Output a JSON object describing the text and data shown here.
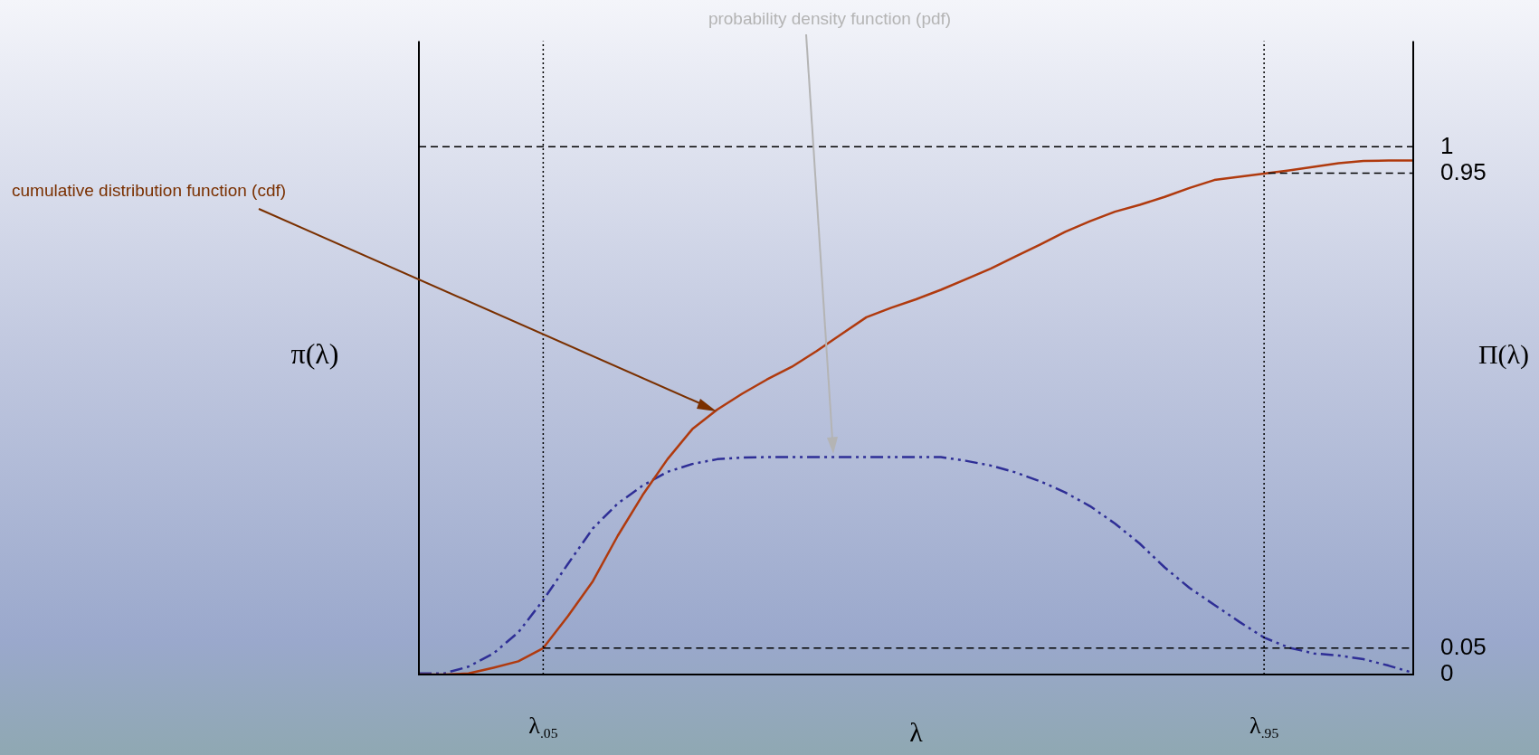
{
  "chart_data": {
    "type": "line",
    "xlabel": "λ",
    "ylabel": "π(λ)",
    "y2label": "Π(λ)",
    "categories": [
      null,
      null,
      null,
      null,
      null,
      "λ$_{.05}$",
      null,
      null,
      null,
      null,
      null,
      null,
      null,
      null,
      null,
      null,
      null,
      null,
      null,
      null,
      null,
      null,
      null,
      null,
      null,
      null,
      null,
      null,
      null,
      null,
      null,
      null,
      null,
      null,
      "λ$_{.95}$",
      null,
      null,
      null,
      null,
      null,
      null
    ],
    "ylim": [
      0,
      1.2
    ],
    "yticks": [
      0,
      0.05,
      0.95,
      1
    ],
    "grid": "x",
    "legend": false,
    "marker": "none",
    "series": [
      {
        "color": "#b03a0e",
        "line_style": "solid",
        "values": [
          0,
          0,
          0.002,
          0.013,
          0.025,
          0.05,
          0.111,
          0.177,
          0.263,
          0.34,
          0.408,
          0.465,
          0.502,
          0.532,
          0.559,
          0.583,
          0.613,
          0.645,
          0.677,
          0.695,
          0.711,
          0.729,
          0.749,
          0.769,
          0.792,
          0.815,
          0.839,
          0.859,
          0.877,
          0.89,
          0.905,
          0.922,
          0.937,
          0.943,
          0.949,
          0.955,
          0.962,
          0.969,
          0.973,
          0.974,
          0.974
        ]
      },
      {
        "color": "#2e2e96",
        "line_style": "dashed",
        "values": [
          0.002,
          0.002,
          0.015,
          0.04,
          0.08,
          0.141,
          0.21,
          0.277,
          0.324,
          0.358,
          0.384,
          0.399,
          0.408,
          0.411,
          0.412,
          0.412,
          0.412,
          0.412,
          0.412,
          0.412,
          0.412,
          0.412,
          0.405,
          0.396,
          0.383,
          0.366,
          0.345,
          0.319,
          0.286,
          0.248,
          0.203,
          0.164,
          0.132,
          0.1,
          0.07,
          0.051,
          0.04,
          0.036,
          0.029,
          0.017,
          0.003
        ]
      }
    ],
    "ref_lines": [
      {
        "axis": "y",
        "value": 1,
        "line_style": "dashed"
      },
      {
        "axis": "y",
        "value": 0.95,
        "line_style": "dashed"
      },
      {
        "axis": "y",
        "value": 0.05,
        "line_style": "dashed"
      }
    ],
    "annotations": [
      "cumulative distribution function (cdf)",
      "probability density function (pdf)"
    ]
  }
}
